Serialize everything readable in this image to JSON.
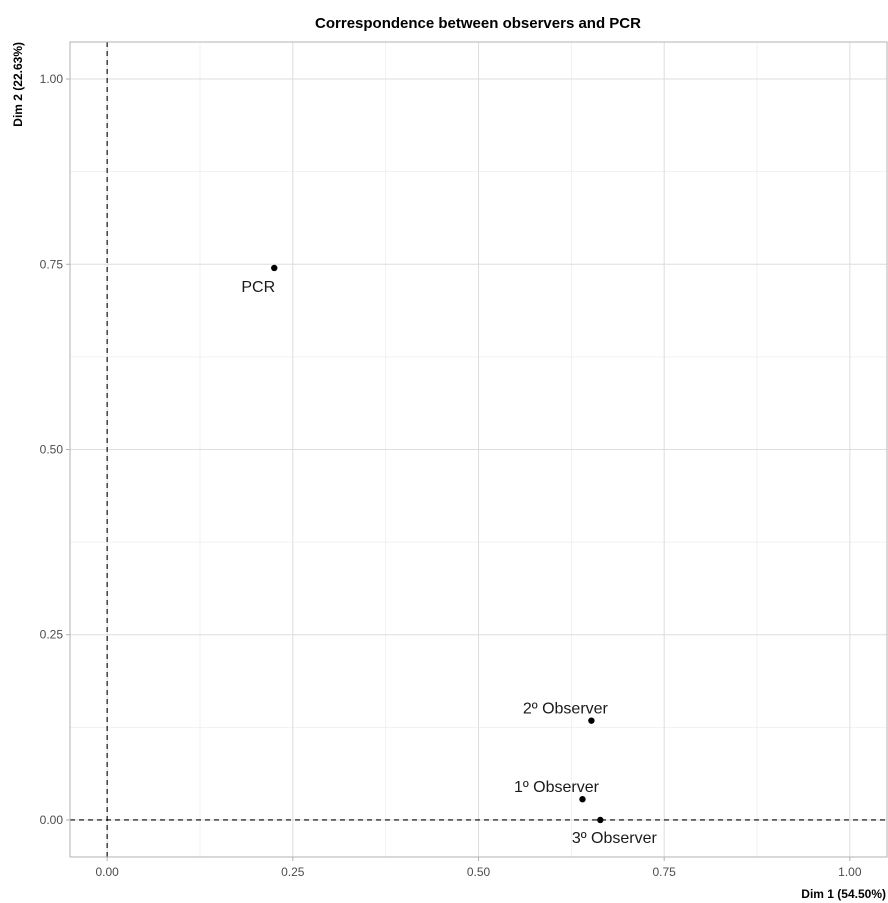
{
  "chart_data": {
    "type": "scatter",
    "title": "Correspondence between observers and PCR",
    "xlabel": "Dim 1 (54.50%)",
    "ylabel": "Dim 2 (22.63%)",
    "xlim": [
      -0.05,
      1.05
    ],
    "ylim": [
      -0.05,
      1.05
    ],
    "x_ticks": [
      0.0,
      0.25,
      0.5,
      0.75,
      1.0
    ],
    "y_ticks": [
      0.0,
      0.25,
      0.5,
      0.75,
      1.0
    ],
    "x_tick_labels": [
      "0.00",
      "0.25",
      "0.50",
      "0.75",
      "1.00"
    ],
    "y_tick_labels": [
      "0.00",
      "0.25",
      "0.50",
      "0.75",
      "1.00"
    ],
    "grid": true,
    "reference_lines": {
      "x": 0,
      "y": 0,
      "style": "dashed"
    },
    "points": [
      {
        "label": "PCR",
        "x": 0.225,
        "y": 0.745,
        "label_position": "below-left"
      },
      {
        "label": "2º Observer",
        "x": 0.652,
        "y": 0.134,
        "label_position": "above"
      },
      {
        "label": "1º Observer",
        "x": 0.64,
        "y": 0.028,
        "label_position": "above"
      },
      {
        "label": "3º Observer",
        "x": 0.664,
        "y": 0.0,
        "label_position": "below"
      }
    ],
    "colors": {
      "point": "#000000",
      "grid": "#dedede",
      "background": "#ffffff"
    }
  }
}
